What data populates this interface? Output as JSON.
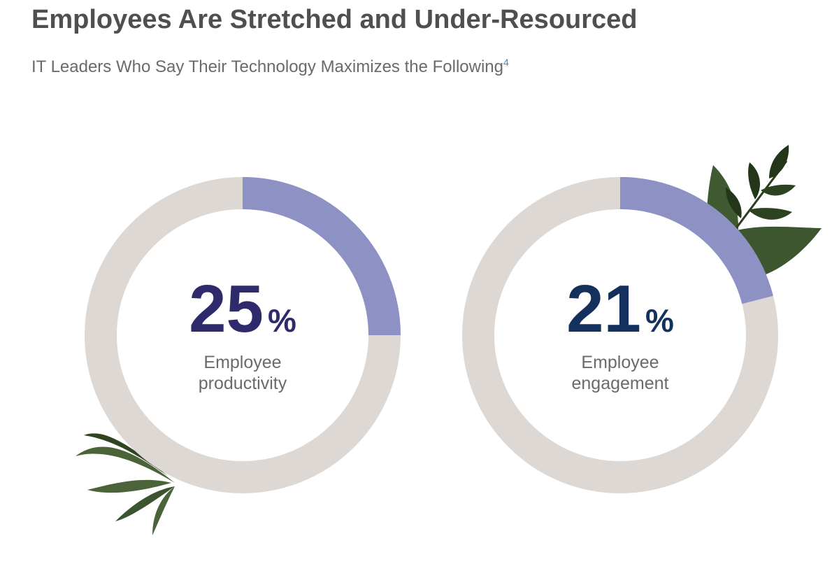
{
  "title": "Employees Are Stretched and Under-Resourced",
  "subtitle": "IT Leaders Who Say Their Technology Maximizes the Following",
  "footnote_ref": "4",
  "chart_data": [
    {
      "type": "donut",
      "categories": [
        "Employee productivity"
      ],
      "values": [
        25
      ],
      "value_labels": [
        "25%"
      ],
      "ylim": [
        0,
        100
      ],
      "color": "#8d91c4",
      "track_color": "#ddd8d3",
      "label_color": "#2e2a6b"
    },
    {
      "type": "donut",
      "categories": [
        "Employee engagement"
      ],
      "values": [
        21
      ],
      "value_labels": [
        "21%"
      ],
      "ylim": [
        0,
        100
      ],
      "color": "#8d91c4",
      "track_color": "#ddd8d3",
      "label_color": "#14305c"
    }
  ]
}
